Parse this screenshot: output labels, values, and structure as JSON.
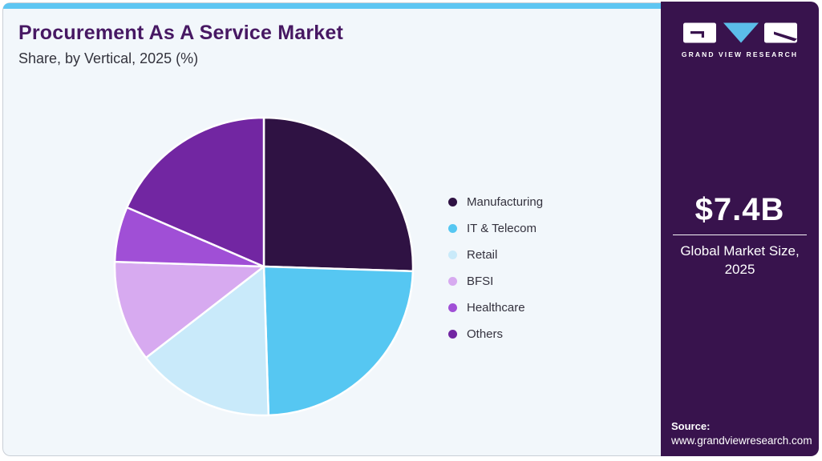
{
  "header": {
    "title": "Procurement As A Service Market",
    "subtitle": "Share, by Vertical, 2025 (%)"
  },
  "chart_data": {
    "type": "pie",
    "title": "Procurement As A Service Market Share, by Vertical, 2025 (%)",
    "categories": [
      "Manufacturing",
      "IT & Telecom",
      "Retail",
      "BFSI",
      "Healthcare",
      "Others"
    ],
    "values": [
      25.5,
      24.0,
      15.0,
      11.0,
      6.0,
      18.5
    ],
    "unit": "%",
    "colors": [
      "#2f1243",
      "#56c7f2",
      "#c9eafa",
      "#d7aaf0",
      "#a04fd6",
      "#7226a2"
    ],
    "start_angle_deg": 0,
    "direction": "clockwise",
    "legend_position": "right",
    "slice_border_color": "#ffffff"
  },
  "sidebar": {
    "brand_name": "GRAND VIEW RESEARCH",
    "market_size_value": "$7.4B",
    "market_size_label": "Global Market Size, 2025",
    "source_label": "Source:",
    "source_url": "www.grandviewresearch.com",
    "background_color": "#38134d",
    "logo_triangle_color": "#5bbde9"
  },
  "theme": {
    "top_bar_color": "#5ec6f2",
    "card_background": "#f2f7fb",
    "title_color": "#471863",
    "body_text_color": "#34323e"
  }
}
